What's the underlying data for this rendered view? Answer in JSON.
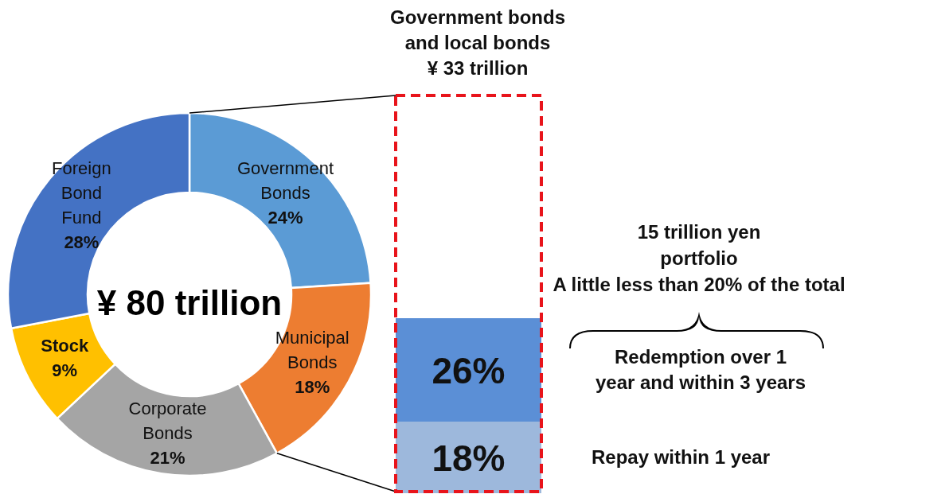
{
  "chart_data": [
    {
      "type": "donut",
      "categories": [
        "Government Bonds",
        "Municipal Bonds",
        "Corporate Bonds",
        "Stock",
        "Foreign Bond Fund"
      ],
      "values": [
        24,
        18,
        21,
        9,
        28
      ],
      "colors": [
        "#5b9bd5",
        "#ed7d31",
        "#a5a5a5",
        "#ffc000",
        "#4472c4"
      ],
      "value_labels": [
        "24%",
        "18%",
        "21%",
        "9%",
        "28%"
      ],
      "annotations": [
        "¥ 80 trillion"
      ]
    },
    {
      "type": "bar",
      "stacked": true,
      "title": "Government bonds\nand local bonds\n¥ 33 trillion",
      "categories": [
        null
      ],
      "ylim": [
        0,
        100
      ],
      "series": [
        {
          "name": "Repay within 1 year",
          "color": "#9db8dc",
          "values": [
            18
          ],
          "value_labels": [
            "18%"
          ]
        },
        {
          "name": "Redemption over 1\nyear and within 3 years",
          "color": "#5b8fd6",
          "values": [
            26
          ],
          "value_labels": [
            "26%"
          ]
        }
      ],
      "annotations": [
        "15 trillion yen\nportfolio\nA little less than 20% of the total"
      ]
    }
  ]
}
